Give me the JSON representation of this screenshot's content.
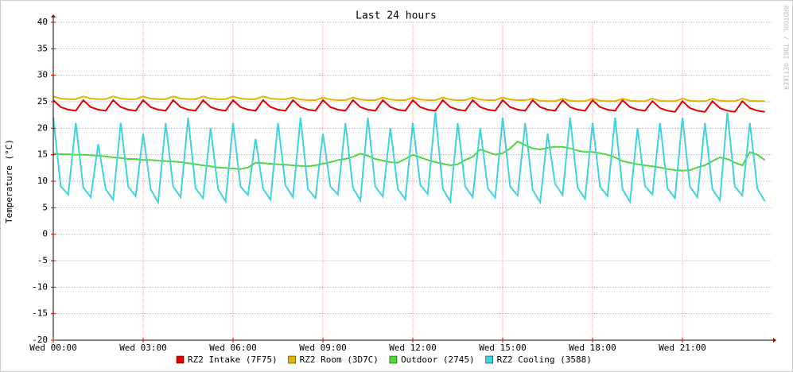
{
  "chart_data": {
    "type": "line",
    "title": "Last 24 hours",
    "y_label": "Temperature (°C)",
    "watermark": "RRDTOOL / TOBI OETIKER",
    "xlim": [
      0,
      24
    ],
    "ylim": [
      -20,
      40
    ],
    "xticks": [
      {
        "value": 0,
        "label": "Wed 00:00"
      },
      {
        "value": 3,
        "label": "Wed 03:00"
      },
      {
        "value": 6,
        "label": "Wed 06:00"
      },
      {
        "value": 9,
        "label": "Wed 09:00"
      },
      {
        "value": 12,
        "label": "Wed 12:00"
      },
      {
        "value": 15,
        "label": "Wed 15:00"
      },
      {
        "value": 18,
        "label": "Wed 18:00"
      },
      {
        "value": 21,
        "label": "Wed 21:00"
      }
    ],
    "yticks": [
      -20,
      -15,
      -10,
      -5,
      0,
      5,
      10,
      15,
      20,
      25,
      30,
      35,
      40
    ],
    "grid": true,
    "x": [
      0,
      0.25,
      0.5,
      0.75,
      1,
      1.25,
      1.5,
      1.75,
      2,
      2.25,
      2.5,
      2.75,
      3,
      3.25,
      3.5,
      3.75,
      4,
      4.25,
      4.5,
      4.75,
      5,
      5.25,
      5.5,
      5.75,
      6,
      6.25,
      6.5,
      6.75,
      7,
      7.25,
      7.5,
      7.75,
      8,
      8.25,
      8.5,
      8.75,
      9,
      9.25,
      9.5,
      9.75,
      10,
      10.25,
      10.5,
      10.75,
      11,
      11.25,
      11.5,
      11.75,
      12,
      12.25,
      12.5,
      12.75,
      13,
      13.25,
      13.5,
      13.75,
      14,
      14.25,
      14.5,
      14.75,
      15,
      15.25,
      15.5,
      15.75,
      16,
      16.25,
      16.5,
      16.75,
      17,
      17.25,
      17.5,
      17.75,
      18,
      18.25,
      18.5,
      18.75,
      19,
      19.25,
      19.5,
      19.75,
      20,
      20.25,
      20.5,
      20.75,
      21,
      21.25,
      21.5,
      21.75,
      22,
      22.25,
      22.5,
      22.75,
      23,
      23.25,
      23.5,
      23.75
    ],
    "series": [
      {
        "name": "RZ2 Intake (7F75)",
        "color": "#e60000",
        "values": [
          25.3,
          24,
          23.5,
          23.3,
          25.3,
          24,
          23.5,
          23.3,
          25.3,
          24,
          23.5,
          23.3,
          25.3,
          24,
          23.5,
          23.3,
          25.3,
          24,
          23.5,
          23.3,
          25.3,
          24,
          23.5,
          23.3,
          25.3,
          24,
          23.5,
          23.3,
          25.3,
          24,
          23.5,
          23.3,
          25.3,
          24,
          23.5,
          23.3,
          25.3,
          24,
          23.5,
          23.3,
          25.3,
          24,
          23.5,
          23.3,
          25.3,
          24,
          23.5,
          23.3,
          25.3,
          24,
          23.5,
          23.3,
          25.3,
          24,
          23.5,
          23.3,
          25.3,
          24,
          23.5,
          23.3,
          25.3,
          24,
          23.5,
          23.3,
          25.3,
          24,
          23.5,
          23.3,
          25.3,
          24,
          23.5,
          23.3,
          25.3,
          24,
          23.5,
          23.3,
          25.3,
          24,
          23.5,
          23.3,
          25.1,
          23.8,
          23.3,
          23.1,
          25.1,
          23.8,
          23.3,
          23.1,
          25.1,
          23.8,
          23.3,
          23.1,
          25.1,
          23.8,
          23.3,
          23.1
        ]
      },
      {
        "name": "RZ2 Room (3D7C)",
        "color": "#e6b400",
        "values": [
          26,
          25.6,
          25.5,
          25.5,
          26,
          25.6,
          25.5,
          25.5,
          26,
          25.6,
          25.5,
          25.5,
          26,
          25.6,
          25.5,
          25.5,
          26,
          25.6,
          25.5,
          25.5,
          26,
          25.6,
          25.5,
          25.5,
          26,
          25.6,
          25.5,
          25.5,
          26,
          25.6,
          25.5,
          25.5,
          25.8,
          25.4,
          25.3,
          25.3,
          25.8,
          25.4,
          25.3,
          25.3,
          25.8,
          25.4,
          25.3,
          25.3,
          25.8,
          25.4,
          25.3,
          25.3,
          25.8,
          25.4,
          25.3,
          25.3,
          25.8,
          25.4,
          25.3,
          25.3,
          25.8,
          25.4,
          25.3,
          25.3,
          25.8,
          25.4,
          25.3,
          25.3,
          25.6,
          25.2,
          25.1,
          25.1,
          25.6,
          25.2,
          25.1,
          25.1,
          25.6,
          25.2,
          25.1,
          25.1,
          25.6,
          25.2,
          25.1,
          25.1,
          25.6,
          25.2,
          25.1,
          25.1,
          25.6,
          25.2,
          25.1,
          25.1,
          25.6,
          25.2,
          25.1,
          25.1,
          25.6,
          25.2,
          25.1,
          25.1
        ]
      },
      {
        "name": "Outdoor (2745)",
        "color": "#4fd83c",
        "values": [
          15.2,
          15.1,
          15.1,
          15.0,
          15.0,
          14.9,
          14.8,
          14.7,
          14.5,
          14.4,
          14.2,
          14.2,
          14.0,
          14.0,
          13.9,
          13.8,
          13.7,
          13.6,
          13.4,
          13.2,
          13.0,
          12.8,
          12.6,
          12.5,
          12.4,
          12.3,
          12.6,
          13.5,
          13.4,
          13.3,
          13.2,
          13.1,
          13.0,
          12.9,
          12.8,
          13.0,
          13.3,
          13.6,
          14.0,
          14.2,
          14.6,
          15.2,
          14.8,
          14.2,
          13.9,
          13.6,
          13.5,
          14.2,
          15.0,
          14.5,
          14.0,
          13.6,
          13.3,
          13.0,
          13.2,
          14.0,
          14.6,
          16.0,
          15.5,
          15.0,
          15.3,
          16.2,
          17.5,
          16.8,
          16.2,
          16.0,
          16.3,
          16.5,
          16.5,
          16.2,
          15.8,
          15.5,
          15.5,
          15.3,
          15.0,
          14.5,
          13.8,
          13.5,
          13.2,
          13.0,
          12.8,
          12.6,
          12.3,
          12.1,
          12.0,
          12.1,
          12.6,
          13.0,
          13.8,
          14.5,
          14.2,
          13.5,
          13.0,
          15.5,
          15.0,
          14.0
        ]
      },
      {
        "name": "RZ2 Cooling (3588)",
        "color": "#3ed3e0",
        "values": [
          22,
          9,
          7.5,
          21,
          8.8,
          7,
          17,
          8.5,
          6.5,
          21,
          9,
          7.2,
          19,
          8.5,
          6,
          21,
          9,
          7,
          22,
          8.7,
          6.8,
          20,
          8.5,
          6.2,
          21,
          9,
          7.4,
          18,
          8.6,
          6.5,
          21,
          9.2,
          7,
          22,
          8.5,
          6.8,
          19,
          9,
          7.5,
          21,
          8.8,
          6.4,
          22,
          9,
          7.1,
          20,
          8.5,
          6.6,
          21,
          9.3,
          7.6,
          23,
          8.6,
          6.2,
          21,
          9,
          7,
          20,
          8.7,
          6.9,
          22,
          9,
          7.3,
          21,
          8.4,
          6,
          19,
          9.5,
          7.4,
          22,
          8.8,
          6.7,
          21,
          9,
          7.2,
          22,
          8.5,
          6.1,
          20,
          9.1,
          7.5,
          21,
          8.7,
          6.8,
          22,
          9,
          7,
          21,
          8.5,
          6.4,
          23,
          9,
          7.3,
          21,
          8.6,
          6.2
        ]
      }
    ]
  }
}
